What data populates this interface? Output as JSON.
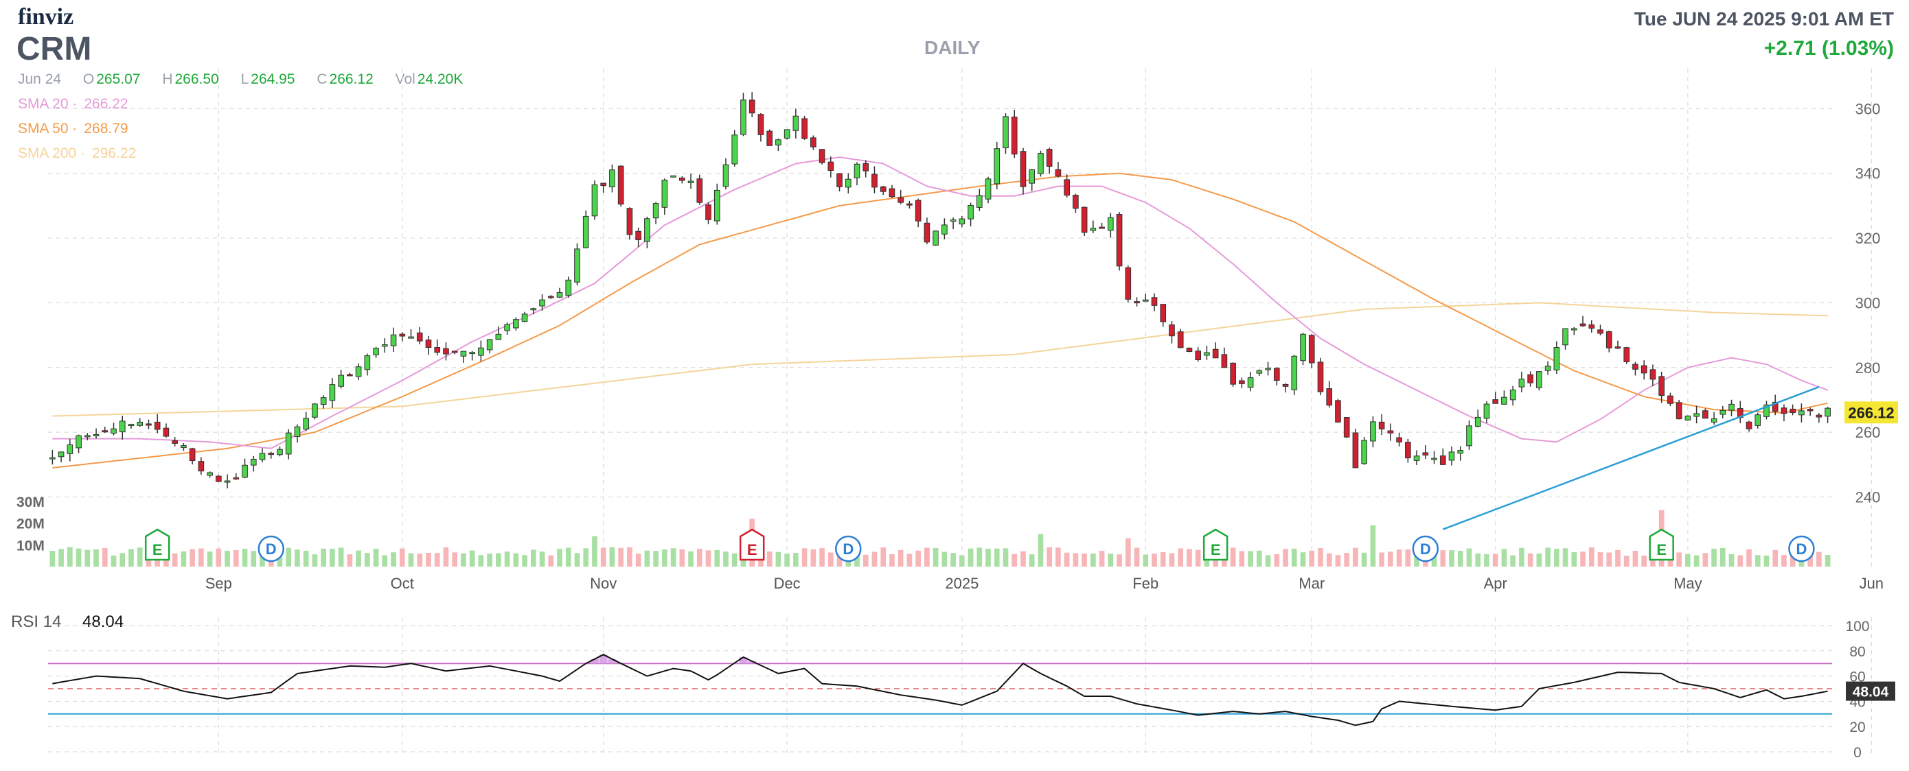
{
  "header": {
    "logo": "finviz",
    "ticker": "CRM",
    "period": "DAILY",
    "datetime": "Tue JUN 24 2025 9:01 AM ET",
    "change": "+2.71 (1.03%)"
  },
  "ohlc": {
    "date": "Jun 24",
    "open_label": "O",
    "open": "265.07",
    "high_label": "H",
    "high": "266.50",
    "low_label": "L",
    "low": "264.95",
    "close_label": "C",
    "close": "266.12",
    "vol_label": "Vol",
    "vol": "24.20K"
  },
  "indicators": {
    "sma20_label": "SMA 20",
    "sma20_value": "266.22",
    "sma50_label": "SMA 50",
    "sma50_value": "268.79",
    "sma200_label": "SMA 200",
    "sma200_value": "296.22"
  },
  "colors": {
    "up": "#2db534",
    "down": "#d1202f",
    "up_fill": "#4cd44c",
    "vol_up": "#a8dfa3",
    "vol_down": "#f7b5b8",
    "sma20": "#e69ad9",
    "sma50": "#f59a4a",
    "sma200": "#f5d49a",
    "trendline": "#2a9fd6",
    "last_price_bg": "#f5e633",
    "rsi_overbought": "#c76fc7",
    "rsi_oversold": "#2a9fd6",
    "rsi_mid": "#e35d5d"
  },
  "chart_data": {
    "type": "candlestick",
    "y_ticks": [
      "240",
      "260",
      "280",
      "300",
      "320",
      "340",
      "360"
    ],
    "ylim": [
      224,
      366
    ],
    "x_labels": [
      {
        "label": "Sep",
        "day": 19
      },
      {
        "label": "Oct",
        "day": 40
      },
      {
        "label": "Nov",
        "day": 63
      },
      {
        "label": "Dec",
        "day": 84
      },
      {
        "label": "2025",
        "day": 104
      },
      {
        "label": "Feb",
        "day": 125
      },
      {
        "label": "Mar",
        "day": 144
      },
      {
        "label": "Apr",
        "day": 165
      },
      {
        "label": "May",
        "day": 187
      },
      {
        "label": "Jun",
        "day": 208
      }
    ],
    "last_price": "266.12",
    "close_anchors": [
      [
        0,
        251
      ],
      [
        4,
        260
      ],
      [
        7,
        262
      ],
      [
        11,
        262
      ],
      [
        14,
        258
      ],
      [
        16,
        251
      ],
      [
        19,
        244
      ],
      [
        21,
        246
      ],
      [
        23,
        251
      ],
      [
        26,
        256
      ],
      [
        29,
        264
      ],
      [
        32,
        275
      ],
      [
        35,
        280
      ],
      [
        38,
        288
      ],
      [
        41,
        290
      ],
      [
        44,
        286
      ],
      [
        47,
        285
      ],
      [
        50,
        288
      ],
      [
        53,
        294
      ],
      [
        56,
        300
      ],
      [
        59,
        306
      ],
      [
        62,
        335
      ],
      [
        64,
        340
      ],
      [
        66,
        322
      ],
      [
        67,
        318
      ],
      [
        70,
        338
      ],
      [
        73,
        338
      ],
      [
        75,
        325
      ],
      [
        76,
        334
      ],
      [
        79,
        362
      ],
      [
        82,
        349
      ],
      [
        85,
        357
      ],
      [
        88,
        342
      ],
      [
        90,
        337
      ],
      [
        92,
        342
      ],
      [
        95,
        334
      ],
      [
        98,
        330
      ],
      [
        100,
        318
      ],
      [
        102,
        325
      ],
      [
        104,
        327
      ],
      [
        107,
        337
      ],
      [
        109,
        357
      ],
      [
        111,
        337
      ],
      [
        113,
        345
      ],
      [
        116,
        334
      ],
      [
        118,
        323
      ],
      [
        121,
        325
      ],
      [
        123,
        300
      ],
      [
        126,
        300
      ],
      [
        128,
        290
      ],
      [
        130,
        284
      ],
      [
        133,
        283
      ],
      [
        135,
        275
      ],
      [
        137,
        276
      ],
      [
        139,
        280
      ],
      [
        141,
        275
      ],
      [
        143,
        290
      ],
      [
        145,
        272
      ],
      [
        147,
        264
      ],
      [
        149,
        250
      ],
      [
        151,
        262
      ],
      [
        153,
        261
      ],
      [
        155,
        253
      ],
      [
        157,
        252
      ],
      [
        159,
        250
      ],
      [
        161,
        255
      ],
      [
        163,
        266
      ],
      [
        165,
        270
      ],
      [
        167,
        274
      ],
      [
        169,
        276
      ],
      [
        171,
        280
      ],
      [
        173,
        292
      ],
      [
        175,
        294
      ],
      [
        177,
        290
      ],
      [
        179,
        285
      ],
      [
        181,
        280
      ],
      [
        183,
        275
      ],
      [
        185,
        270
      ],
      [
        186,
        263
      ],
      [
        188,
        267
      ],
      [
        190,
        264
      ],
      [
        192,
        268
      ],
      [
        194,
        262
      ],
      [
        196,
        267
      ],
      [
        198,
        266
      ]
    ],
    "volume_ticks": [
      "30M",
      "20M",
      "10M"
    ],
    "volume_range": [
      0,
      36
    ],
    "volume_spikes": [
      [
        12,
        14
      ],
      [
        25,
        8
      ],
      [
        62,
        14
      ],
      [
        80,
        22
      ],
      [
        91,
        14
      ],
      [
        113,
        15
      ],
      [
        123,
        13
      ],
      [
        133,
        11
      ],
      [
        151,
        19
      ],
      [
        157,
        12
      ],
      [
        184,
        26
      ],
      [
        200,
        11
      ]
    ],
    "events": [
      {
        "type": "E",
        "day": 12
      },
      {
        "type": "D",
        "day": 25
      },
      {
        "type": "E",
        "day": 80
      },
      {
        "type": "D",
        "day": 91
      },
      {
        "type": "E",
        "day": 133
      },
      {
        "type": "D",
        "day": 157
      },
      {
        "type": "E",
        "day": 184
      },
      {
        "type": "D",
        "day": 200
      }
    ],
    "trendline": [
      [
        159,
        230
      ],
      [
        202,
        274
      ]
    ],
    "sma20_anchors": [
      [
        0,
        258
      ],
      [
        10,
        258
      ],
      [
        18,
        257
      ],
      [
        25,
        255
      ],
      [
        32,
        265
      ],
      [
        40,
        276
      ],
      [
        48,
        288
      ],
      [
        56,
        298
      ],
      [
        62,
        306
      ],
      [
        70,
        324
      ],
      [
        78,
        335
      ],
      [
        85,
        343
      ],
      [
        90,
        345
      ],
      [
        95,
        343
      ],
      [
        100,
        336
      ],
      [
        105,
        333
      ],
      [
        110,
        333
      ],
      [
        115,
        336
      ],
      [
        120,
        336
      ],
      [
        125,
        331
      ],
      [
        130,
        323
      ],
      [
        135,
        312
      ],
      [
        140,
        300
      ],
      [
        145,
        289
      ],
      [
        150,
        281
      ],
      [
        156,
        273
      ],
      [
        162,
        265
      ],
      [
        168,
        258
      ],
      [
        172,
        257
      ],
      [
        177,
        264
      ],
      [
        182,
        273
      ],
      [
        187,
        280
      ],
      [
        192,
        283
      ],
      [
        196,
        281
      ],
      [
        200,
        276
      ],
      [
        203,
        273
      ]
    ],
    "sma50_anchors": [
      [
        0,
        249
      ],
      [
        10,
        252
      ],
      [
        20,
        255
      ],
      [
        30,
        260
      ],
      [
        40,
        271
      ],
      [
        50,
        283
      ],
      [
        58,
        293
      ],
      [
        66,
        306
      ],
      [
        74,
        318
      ],
      [
        82,
        324
      ],
      [
        90,
        330
      ],
      [
        98,
        333
      ],
      [
        106,
        336
      ],
      [
        115,
        339
      ],
      [
        122,
        340
      ],
      [
        128,
        338
      ],
      [
        135,
        332
      ],
      [
        142,
        325
      ],
      [
        150,
        313
      ],
      [
        158,
        301
      ],
      [
        166,
        290
      ],
      [
        174,
        279
      ],
      [
        182,
        271
      ],
      [
        190,
        267
      ],
      [
        198,
        266
      ],
      [
        203,
        269
      ]
    ],
    "sma200_anchors": [
      [
        0,
        265
      ],
      [
        40,
        268
      ],
      [
        80,
        281
      ],
      [
        110,
        284
      ],
      [
        130,
        291
      ],
      [
        150,
        298
      ],
      [
        170,
        300
      ],
      [
        190,
        297
      ],
      [
        203,
        296
      ]
    ],
    "rsi": {
      "label": "RSI 14",
      "value": "48.04",
      "ticks": [
        "0",
        "20",
        "40",
        "60",
        "80",
        "100"
      ],
      "overbought": 70,
      "oversold": 30,
      "mid": 50,
      "anchors": [
        [
          0,
          54
        ],
        [
          5,
          60
        ],
        [
          10,
          58
        ],
        [
          15,
          48
        ],
        [
          20,
          42
        ],
        [
          25,
          47
        ],
        [
          28,
          62
        ],
        [
          34,
          68
        ],
        [
          38,
          67
        ],
        [
          41,
          70
        ],
        [
          45,
          64
        ],
        [
          50,
          68
        ],
        [
          56,
          60
        ],
        [
          58,
          56
        ],
        [
          61,
          70
        ],
        [
          63,
          77
        ],
        [
          65,
          70
        ],
        [
          68,
          60
        ],
        [
          71,
          66
        ],
        [
          73,
          64
        ],
        [
          75,
          57
        ],
        [
          76,
          61
        ],
        [
          79,
          75
        ],
        [
          83,
          62
        ],
        [
          86,
          66
        ],
        [
          88,
          54
        ],
        [
          92,
          52
        ],
        [
          97,
          45
        ],
        [
          101,
          41
        ],
        [
          104,
          37
        ],
        [
          108,
          48
        ],
        [
          111,
          70
        ],
        [
          113,
          62
        ],
        [
          116,
          52
        ],
        [
          118,
          44
        ],
        [
          121,
          44
        ],
        [
          124,
          38
        ],
        [
          128,
          33
        ],
        [
          131,
          29
        ],
        [
          135,
          32
        ],
        [
          138,
          30
        ],
        [
          141,
          32
        ],
        [
          144,
          28
        ],
        [
          147,
          25
        ],
        [
          149,
          21
        ],
        [
          151,
          24
        ],
        [
          152,
          34
        ],
        [
          154,
          40
        ],
        [
          160,
          36
        ],
        [
          165,
          33
        ],
        [
          168,
          36
        ],
        [
          170,
          50
        ],
        [
          174,
          55
        ],
        [
          179,
          63
        ],
        [
          184,
          62
        ],
        [
          186,
          55
        ],
        [
          190,
          50
        ],
        [
          193,
          43
        ],
        [
          196,
          49
        ],
        [
          198,
          42
        ],
        [
          200,
          44
        ],
        [
          203,
          48
        ]
      ]
    }
  }
}
